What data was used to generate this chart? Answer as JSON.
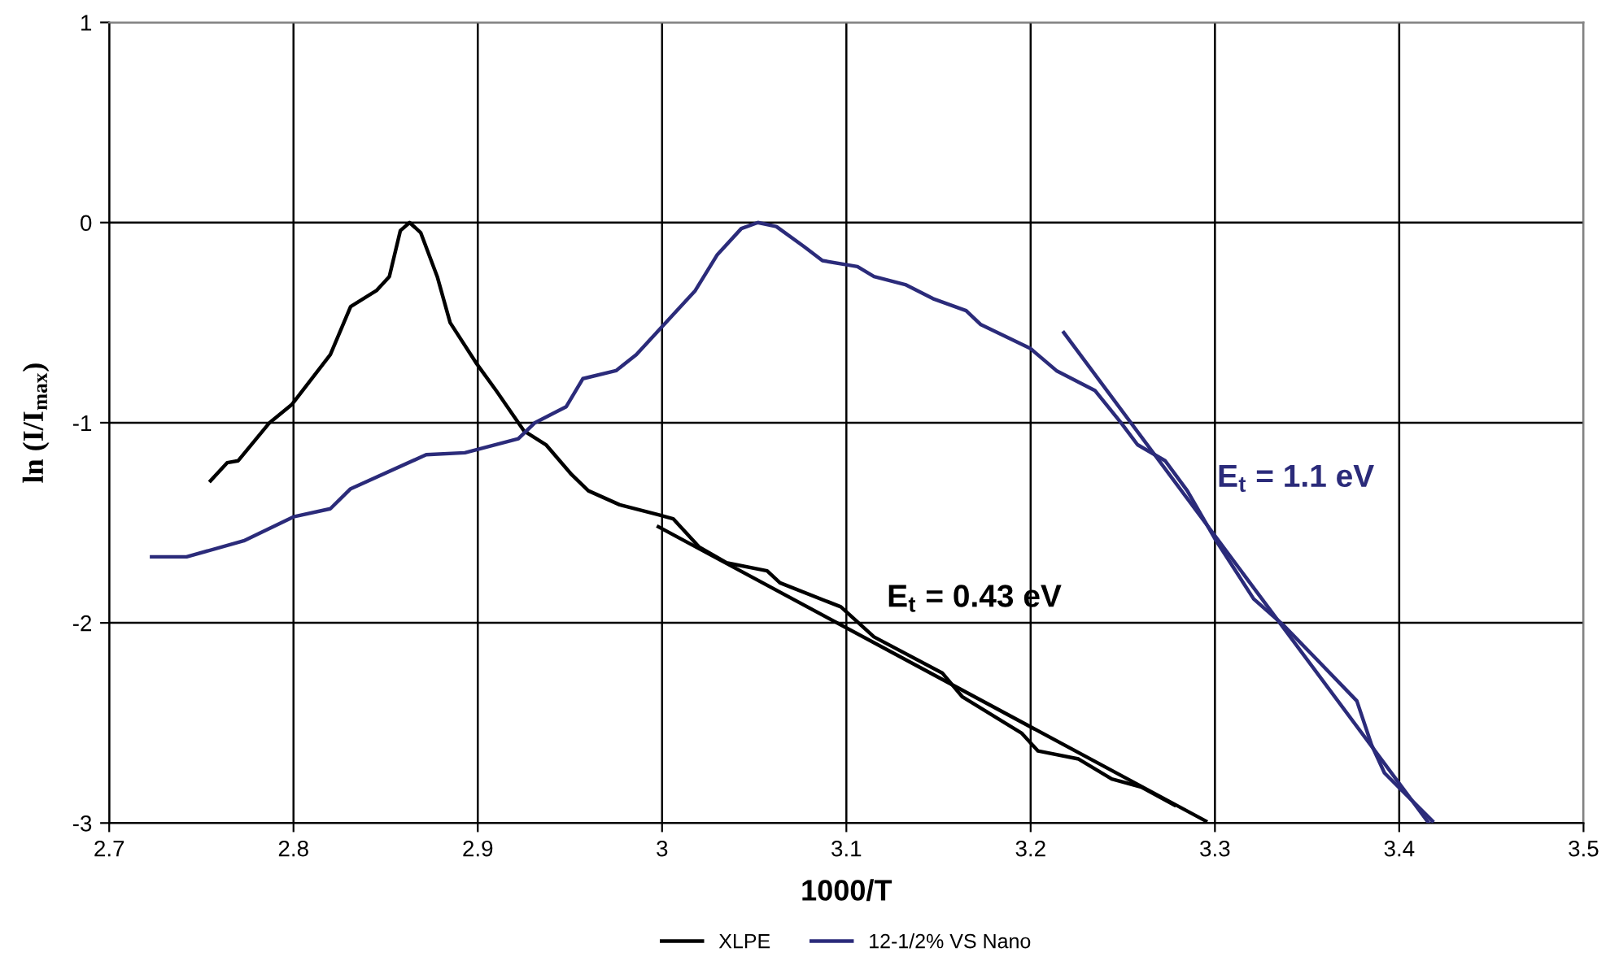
{
  "chart_data": {
    "type": "line",
    "xlabel": "1000/T",
    "ylabel": "ln (I/I$_{max}$)",
    "xlim": [
      2.7,
      3.5
    ],
    "ylim": [
      -3,
      1
    ],
    "xticks": [
      2.7,
      2.8,
      2.9,
      3,
      3.1,
      3.2,
      3.3,
      3.4,
      3.5
    ],
    "yticks": [
      -3,
      -2,
      -1,
      0,
      1
    ],
    "grid": true,
    "legend": "bottom",
    "marker": "none",
    "line_style": "solid",
    "series": [
      {
        "name": "XLPE",
        "color": "#000000",
        "x": [
          2.755,
          2.764,
          2.77,
          2.787,
          2.799,
          2.82,
          2.831,
          2.845,
          2.852,
          2.858,
          2.863,
          2.869,
          2.878,
          2.885,
          2.899,
          2.91,
          2.925,
          2.937,
          2.951,
          2.96,
          2.977,
          2.998,
          3.006,
          3.02,
          3.035,
          3.057,
          3.064,
          3.097,
          3.115,
          3.152,
          3.163,
          3.195,
          3.204,
          3.226,
          3.244,
          3.26,
          3.278
        ],
        "values": [
          -1.29,
          -1.2,
          -1.19,
          -1.0,
          -0.91,
          -0.66,
          -0.42,
          -0.34,
          -0.27,
          -0.04,
          0.0,
          -0.05,
          -0.27,
          -0.5,
          -0.7,
          -0.84,
          -1.04,
          -1.11,
          -1.26,
          -1.34,
          -1.41,
          -1.46,
          -1.48,
          -1.62,
          -1.7,
          -1.74,
          -1.8,
          -1.92,
          -2.07,
          -2.25,
          -2.37,
          -2.55,
          -2.64,
          -2.68,
          -2.78,
          -2.82,
          -2.91
        ]
      },
      {
        "name": "12-1/2% VS Nano",
        "color": "#2b2b7a",
        "x": [
          2.723,
          2.742,
          2.773,
          2.8,
          2.82,
          2.831,
          2.872,
          2.893,
          2.922,
          2.931,
          2.948,
          2.957,
          2.975,
          2.986,
          2.999,
          3.018,
          3.03,
          3.043,
          3.052,
          3.062,
          3.077,
          3.087,
          3.106,
          3.115,
          3.132,
          3.147,
          3.165,
          3.173,
          3.2,
          3.214,
          3.235,
          3.249,
          3.258,
          3.273,
          3.285,
          3.3,
          3.321,
          3.337,
          3.355,
          3.377,
          3.385,
          3.392,
          3.418
        ],
        "values": [
          -1.67,
          -1.67,
          -1.59,
          -1.47,
          -1.43,
          -1.33,
          -1.16,
          -1.15,
          -1.08,
          -1.0,
          -0.92,
          -0.78,
          -0.74,
          -0.66,
          -0.53,
          -0.34,
          -0.16,
          -0.03,
          0.0,
          -0.02,
          -0.12,
          -0.19,
          -0.22,
          -0.27,
          -0.31,
          -0.38,
          -0.44,
          -0.51,
          -0.63,
          -0.74,
          -0.84,
          -1.0,
          -1.11,
          -1.19,
          -1.34,
          -1.58,
          -1.88,
          -2.01,
          -2.18,
          -2.39,
          -2.61,
          -2.75,
          -2.99
        ]
      },
      {
        "color": "#000000",
        "x": [
          2.998,
          3.295
        ],
        "values": [
          -1.52,
          -2.99
        ]
      },
      {
        "color": "#2b2b7a",
        "x": [
          3.218,
          3.416
        ],
        "values": [
          -0.55,
          -3.0
        ]
      }
    ],
    "annotations": [
      "E$_{t}$ = 0.43 eV",
      "E$_{t}$ = 1.1 eV"
    ]
  }
}
